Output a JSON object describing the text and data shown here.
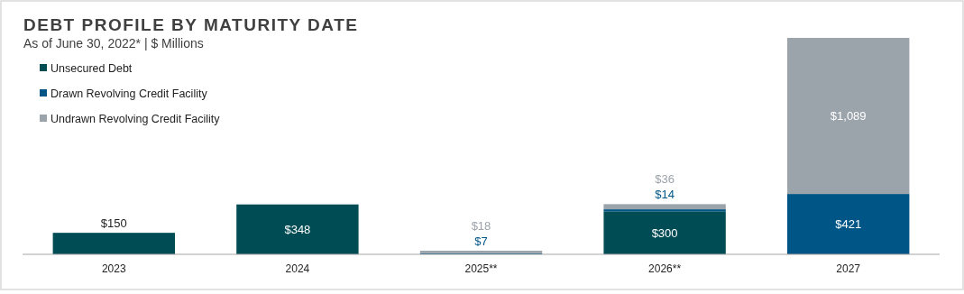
{
  "chart_data": {
    "type": "bar",
    "stacked": true,
    "title": "DEBT PROFILE BY MATURITY DATE",
    "subtitle": "As of June 30, 2022* | $ Millions",
    "categories": [
      "2023",
      "2024",
      "2025**",
      "2026**",
      "2027"
    ],
    "series": [
      {
        "name": "Unsecured Debt",
        "color": "#004c55",
        "values": [
          150,
          348,
          null,
          300,
          null
        ],
        "value_labels": [
          "$150",
          "$348",
          null,
          "$300",
          null
        ]
      },
      {
        "name": "Drawn Revolving Credit Facility",
        "color": "#005587",
        "values": [
          null,
          null,
          7,
          14,
          421
        ],
        "value_labels": [
          null,
          null,
          "$7",
          "$14",
          "$421"
        ]
      },
      {
        "name": "Undrawn Revolving Credit Facility",
        "color": "#9ba3ab",
        "values": [
          null,
          null,
          18,
          36,
          1089
        ],
        "value_labels": [
          null,
          null,
          "$18",
          "$36",
          "$1,089"
        ]
      }
    ],
    "legend": "top left"
  }
}
